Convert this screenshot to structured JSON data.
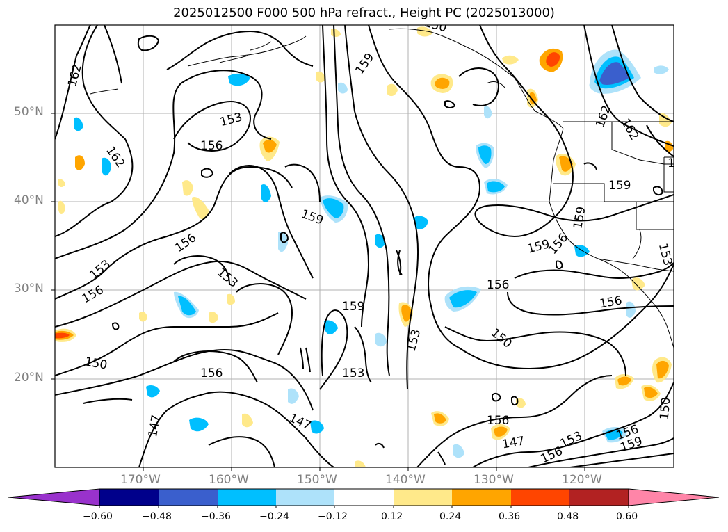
{
  "title": "2025012500 F000 500 hPa refract., Height PC (2025013000)",
  "map": {
    "lat_labels": [
      "50°N",
      "40°N",
      "30°N",
      "20°N"
    ],
    "lon_labels": [
      "170°W",
      "160°W",
      "150°W",
      "140°W",
      "130°W",
      "120°W"
    ],
    "contour_labels": [
      "162",
      "162",
      "153",
      "156",
      "156",
      "153",
      "156",
      "150",
      "159",
      "159",
      "159",
      "153",
      "159",
      "153",
      "156",
      "147",
      "147",
      "150",
      "153",
      "147",
      "156",
      "153",
      "156",
      "159",
      "159",
      "159",
      "156",
      "156",
      "150",
      "156",
      "153",
      "156",
      "150",
      "162",
      "162",
      "153"
    ]
  },
  "colorbar": {
    "tick_labels": [
      "−0.60",
      "−0.48",
      "−0.36",
      "−0.24",
      "−0.12",
      "0.12",
      "0.24",
      "0.36",
      "0.48",
      "0.60"
    ],
    "colors": [
      "#9932cc",
      "#00008b",
      "#3a5fcd",
      "#00bfff",
      "#aee2fa",
      "#ffffff",
      "#ffe98a",
      "#ffa500",
      "#ff4500",
      "#b22222",
      "#ff85a8"
    ]
  }
}
